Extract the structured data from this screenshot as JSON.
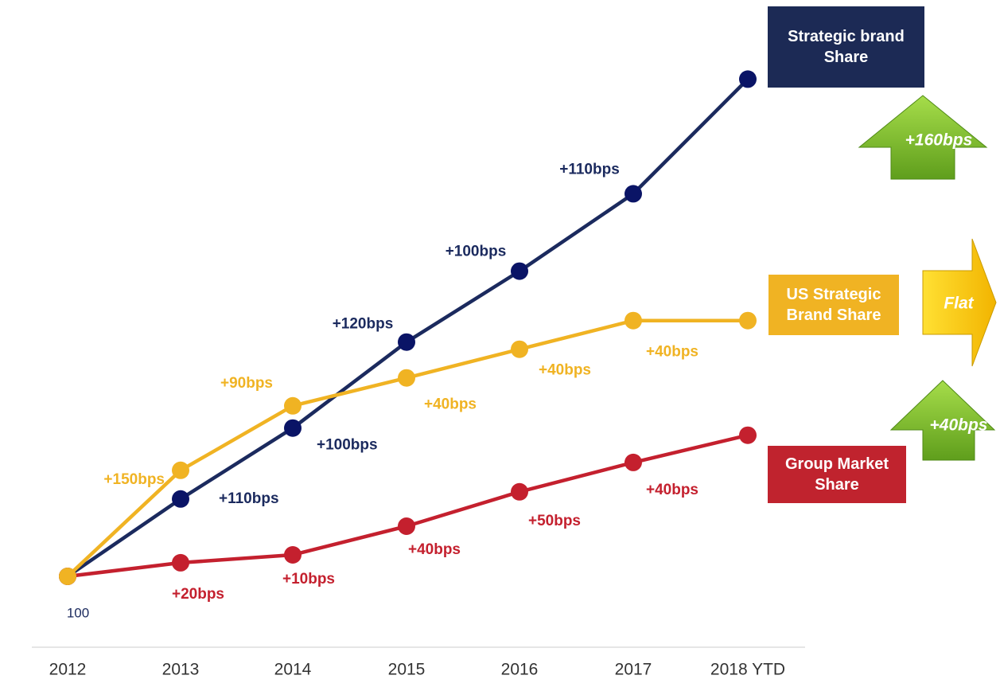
{
  "chart_data": {
    "type": "line",
    "categories": [
      "2012",
      "2013",
      "2014",
      "2015",
      "2016",
      "2017",
      "2018 YTD"
    ],
    "base_label": "100",
    "ylim": [
      96,
      172
    ],
    "series": [
      {
        "name": "Strategic brand Share",
        "color": "#1b2a5e",
        "marker_color": "#0a1466",
        "change": "+160bps",
        "change_direction": "up",
        "values": [
          100,
          110.8,
          120.7,
          132.7,
          142.6,
          153.4,
          169.4
        ],
        "labels": [
          null,
          "+110bps",
          "+100bps",
          "+120bps",
          "+100bps",
          "+110bps",
          null
        ]
      },
      {
        "name": "US Strategic Brand Share",
        "color": "#f0b323",
        "marker_color": "#f0b323",
        "change": "Flat",
        "change_direction": "flat",
        "values": [
          100,
          114.8,
          123.8,
          127.7,
          131.7,
          135.7,
          135.7
        ],
        "labels": [
          null,
          "+150bps",
          "+90bps",
          "+40bps",
          "+40bps",
          "+40bps",
          null
        ]
      },
      {
        "name": "Group Market Share",
        "color": "#c4202e",
        "marker_color": "#c4202e",
        "change": "+40bps",
        "change_direction": "up",
        "values": [
          100,
          101.9,
          103.0,
          107.0,
          111.8,
          115.9,
          119.7
        ],
        "labels": [
          null,
          "+20bps",
          "+10bps",
          "+40bps",
          "+50bps",
          "+40bps",
          null
        ]
      }
    ]
  }
}
